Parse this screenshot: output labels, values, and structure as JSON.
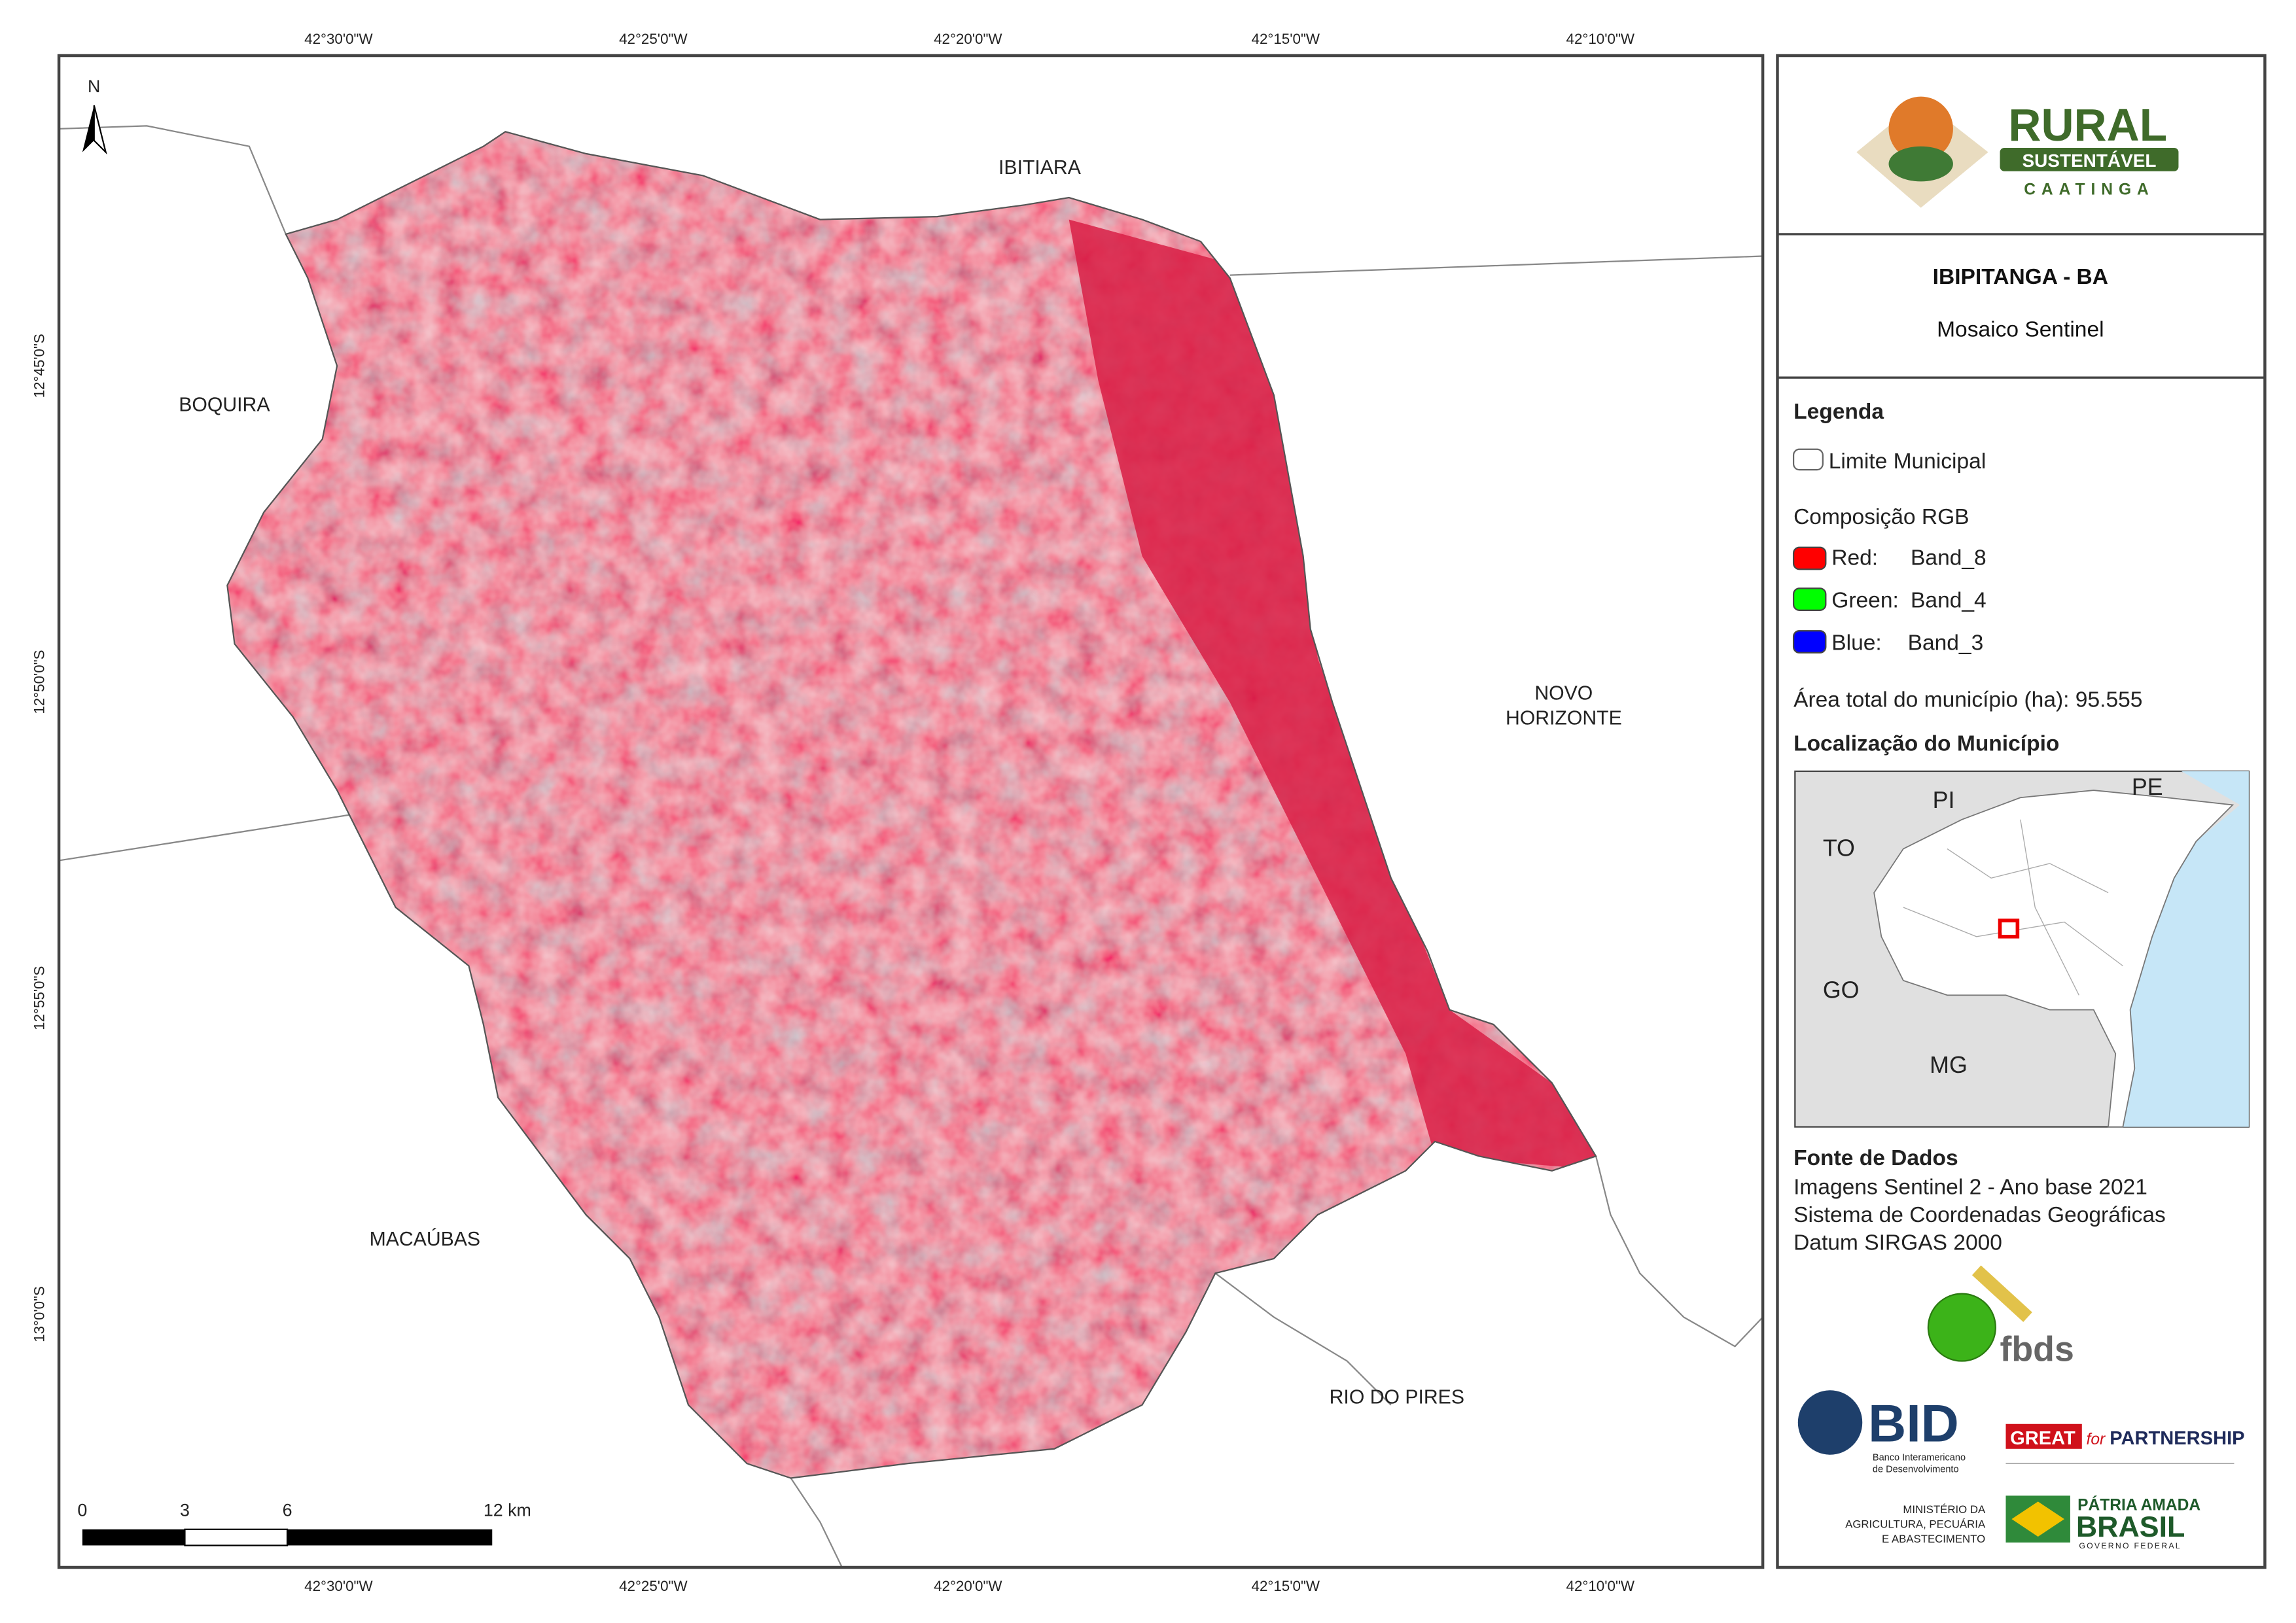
{
  "map": {
    "graticule": {
      "longitudes": [
        "42°30'0\"W",
        "42°25'0\"W",
        "42°20'0\"W",
        "42°15'0\"W",
        "42°10'0\"W"
      ],
      "latitudes": [
        "12°45'0\"S",
        "12°50'0\"S",
        "12°55'0\"S",
        "13°0'0\"S"
      ]
    },
    "north": "N",
    "places": {
      "ibitiara": "IBITIARA",
      "boquira": "BOQUIRA",
      "novo_horizonte": [
        "NOVO",
        "HORIZONTE"
      ],
      "macaubas": "MACAÚBAS",
      "rio_do_pires": "RIO DO PIRES"
    },
    "scale_bar": [
      "0",
      "3",
      "6",
      "12 km"
    ]
  },
  "panel": {
    "logo": {
      "rural": "RURAL",
      "sustentavel": "SUSTENTÁVEL",
      "caatinga": "CAATINGA"
    },
    "title": "IBIPITANGA - BA",
    "subtitle": "Mosaico Sentinel",
    "legend": {
      "heading": "Legenda",
      "limit": "Limite Municipal",
      "composition": "Composição RGB",
      "bands": [
        {
          "channel": "Red:",
          "band": "Band_8"
        },
        {
          "channel": "Green:",
          "band": "Band_4"
        },
        {
          "channel": "Blue:",
          "band": "Band_3"
        }
      ]
    },
    "area": "Área total do município (ha): 95.555",
    "location_heading": "Localização do Município",
    "inset_labels": [
      "PI",
      "PE",
      "TO",
      "GO",
      "MG"
    ],
    "sources": {
      "heading": "Fonte de Dados",
      "lines": [
        "Imagens Sentinel 2 - Ano base 2021",
        "Sistema de Coordenadas Geográficas",
        "Datum SIRGAS 2000"
      ]
    },
    "partners": {
      "fbds": "fbds",
      "bid": "BID",
      "bid_name": [
        "Banco Interamericano",
        "de Desenvolvimento"
      ],
      "great": "GREAT",
      "great_for": "for",
      "partnership": "PARTNERSHIP",
      "ministry": [
        "MINISTÉRIO DA",
        "AGRICULTURA, PECUÁRIA",
        "E ABASTECIMENTO"
      ],
      "patria": "PÁTRIA AMADA",
      "brasil": "BRASIL",
      "governo": "GOVERNO FEDERAL"
    }
  }
}
